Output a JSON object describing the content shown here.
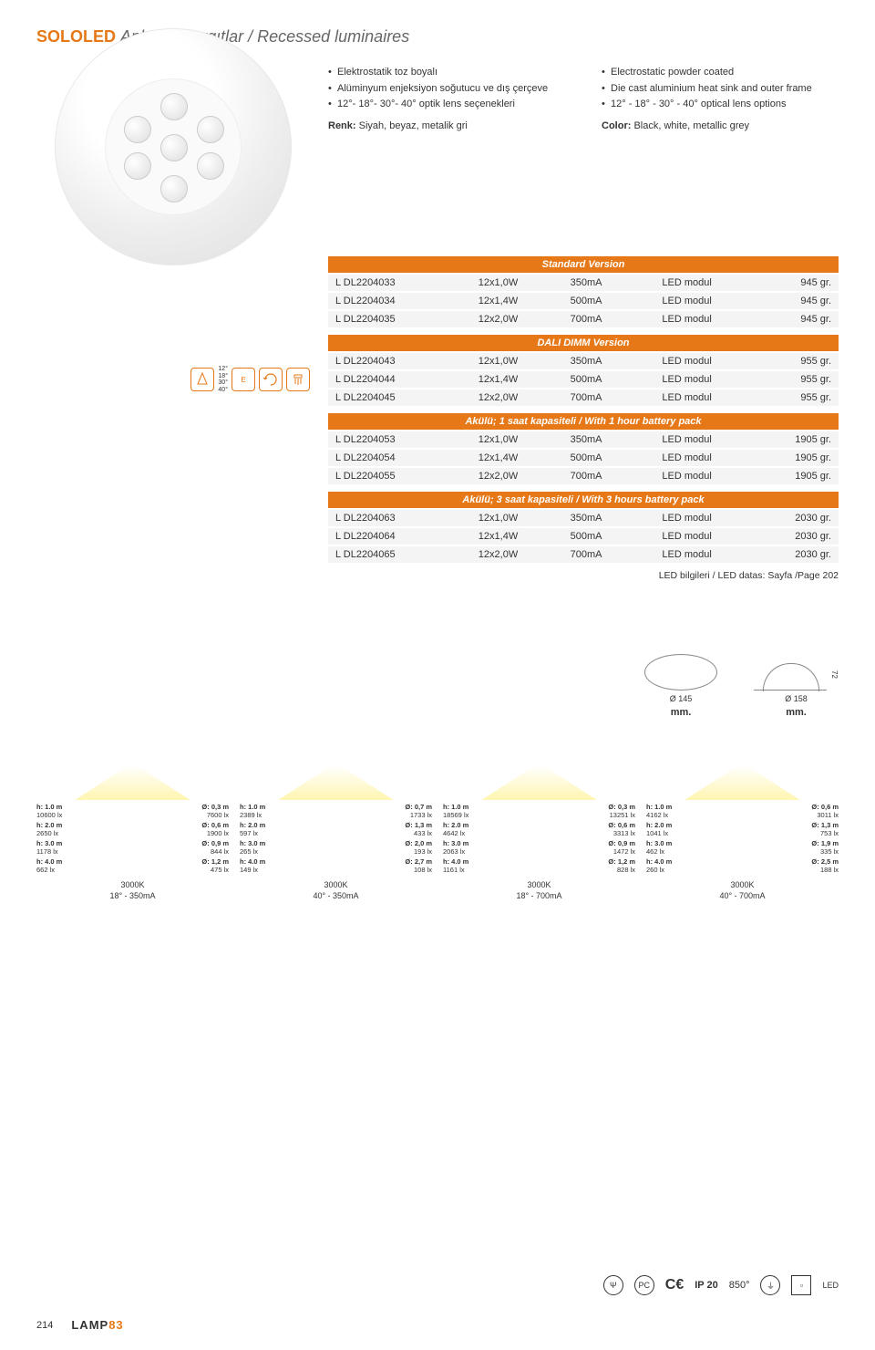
{
  "header": {
    "brand": "SOLOLED",
    "subtitle_tr": "Ankastre aygıtlar /",
    "subtitle_en": " Recessed luminaires"
  },
  "specs_tr": {
    "items": [
      "Elektrostatik toz boyalı",
      "Alüminyum enjeksiyon soğutucu ve dış çerçeve",
      "12°- 18°- 30°- 40° optik lens seçenekleri"
    ],
    "color_label": "Renk:",
    "color_val": " Siyah, beyaz, metalik gri"
  },
  "specs_en": {
    "items": [
      "Electrostatic powder coated",
      "Die cast aluminium heat sink and outer frame",
      "12° - 18° - 30° - 40° optical lens options"
    ],
    "color_label": "Color:",
    "color_val": " Black, white, metallic grey"
  },
  "beam_angles": "12°\n18°\n30°\n40°",
  "tables": [
    {
      "header": "Standard Version",
      "rows": [
        [
          "L DL2204033",
          "12x1,0W",
          "350mA",
          "LED modul",
          "945 gr."
        ],
        [
          "L DL2204034",
          "12x1,4W",
          "500mA",
          "LED modul",
          "945 gr."
        ],
        [
          "L DL2204035",
          "12x2,0W",
          "700mA",
          "LED modul",
          "945 gr."
        ]
      ]
    },
    {
      "header": "DALI DIMM Version",
      "rows": [
        [
          "L DL2204043",
          "12x1,0W",
          "350mA",
          "LED modul",
          "955 gr."
        ],
        [
          "L DL2204044",
          "12x1,4W",
          "500mA",
          "LED modul",
          "955 gr."
        ],
        [
          "L DL2204045",
          "12x2,0W",
          "700mA",
          "LED modul",
          "955 gr."
        ]
      ]
    },
    {
      "header": "Akülü; 1 saat kapasiteli / With 1 hour battery pack",
      "rows": [
        [
          "L DL2204053",
          "12x1,0W",
          "350mA",
          "LED modul",
          "1905 gr."
        ],
        [
          "L DL2204054",
          "12x1,4W",
          "500mA",
          "LED modul",
          "1905 gr."
        ],
        [
          "L DL2204055",
          "12x2,0W",
          "700mA",
          "LED modul",
          "1905 gr."
        ]
      ]
    },
    {
      "header": "Akülü; 3 saat kapasiteli / With 3 hours battery pack",
      "rows": [
        [
          "L DL2204063",
          "12x1,0W",
          "350mA",
          "LED modul",
          "2030 gr."
        ],
        [
          "L DL2204064",
          "12x1,4W",
          "500mA",
          "LED modul",
          "2030 gr."
        ],
        [
          "L DL2204065",
          "12x2,0W",
          "700mA",
          "LED modul",
          "2030 gr."
        ]
      ]
    }
  ],
  "led_note": "LED bilgileri / LED datas: Sayfa /Page 202",
  "dims": {
    "d1": "Ø 145",
    "d2": "Ø 158",
    "h": "72",
    "mm": "mm."
  },
  "lux_blocks": [
    {
      "lines": [
        [
          "h: 1.0 m",
          "10600 lx",
          "Ø: 0,3 m",
          "7600 lx"
        ],
        [
          "h: 2.0 m",
          "2650 lx",
          "Ø: 0,6 m",
          "1900 lx"
        ],
        [
          "h: 3.0 m",
          "1178 lx",
          "Ø: 0,9 m",
          "844 lx"
        ],
        [
          "h: 4.0 m",
          "662 lx",
          "Ø: 1,2 m",
          "475 lx"
        ]
      ],
      "caption1": "3000K",
      "caption2": "18° - 350mA"
    },
    {
      "lines": [
        [
          "h: 1.0 m",
          "2389 lx",
          "Ø: 0,7 m",
          "1733 lx"
        ],
        [
          "h: 2.0 m",
          "597 lx",
          "Ø: 1,3 m",
          "433 lx"
        ],
        [
          "h: 3.0 m",
          "265 lx",
          "Ø: 2,0 m",
          "193 lx"
        ],
        [
          "h: 4.0 m",
          "149 lx",
          "Ø: 2,7 m",
          "108 lx"
        ]
      ],
      "caption1": "3000K",
      "caption2": "40° - 350mA"
    },
    {
      "lines": [
        [
          "h: 1.0 m",
          "18569 lx",
          "Ø: 0,3 m",
          "13251 lx"
        ],
        [
          "h: 2.0 m",
          "4642 lx",
          "Ø: 0,6 m",
          "3313 lx"
        ],
        [
          "h: 3.0 m",
          "2063 lx",
          "Ø: 0,9 m",
          "1472 lx"
        ],
        [
          "h: 4.0 m",
          "1161 lx",
          "Ø: 1,2 m",
          "828 lx"
        ]
      ],
      "caption1": "3000K",
      "caption2": "18° - 700mA"
    },
    {
      "lines": [
        [
          "h: 1.0 m",
          "4162 lx",
          "Ø: 0,6 m",
          "3011 lx"
        ],
        [
          "h: 2.0 m",
          "1041 lx",
          "Ø: 1,3 m",
          "753 lx"
        ],
        [
          "h: 3.0 m",
          "462 lx",
          "Ø: 1,9 m",
          "335 lx"
        ],
        [
          "h: 4.0 m",
          "260 lx",
          "Ø: 2,5 m",
          "188 lx"
        ]
      ],
      "caption1": "3000K",
      "caption2": "40° - 700mA"
    }
  ],
  "footer": {
    "ip": "IP 20",
    "temp": "850°",
    "led": "LED",
    "page": "214",
    "logo1": "LAMP",
    "logo2": "83"
  },
  "colors": {
    "accent": "#e67817",
    "row_bg": "#f4f4f4"
  }
}
